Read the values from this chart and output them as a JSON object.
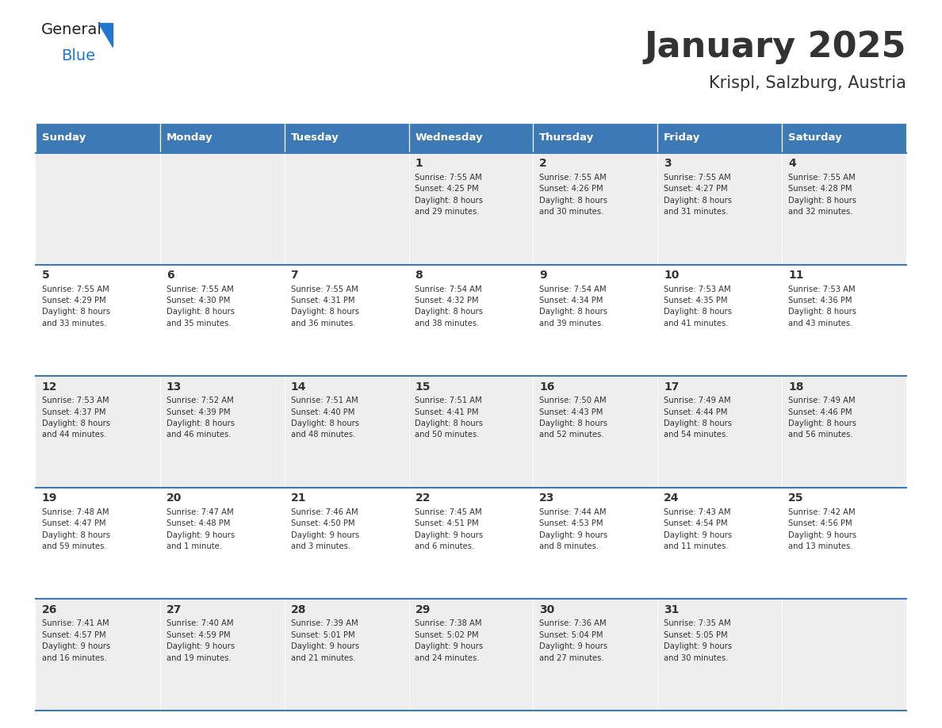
{
  "title": "January 2025",
  "subtitle": "Krispl, Salzburg, Austria",
  "header_bg": "#3d7ab5",
  "header_text": "#ffffff",
  "row_bg_odd": "#eeeeee",
  "row_bg_even": "#ffffff",
  "divider_color": "#3d7ab5",
  "text_color": "#333333",
  "days_of_week": [
    "Sunday",
    "Monday",
    "Tuesday",
    "Wednesday",
    "Thursday",
    "Friday",
    "Saturday"
  ],
  "calendar_data": [
    [
      {
        "day": "",
        "info": ""
      },
      {
        "day": "",
        "info": ""
      },
      {
        "day": "",
        "info": ""
      },
      {
        "day": "1",
        "info": "Sunrise: 7:55 AM\nSunset: 4:25 PM\nDaylight: 8 hours\nand 29 minutes."
      },
      {
        "day": "2",
        "info": "Sunrise: 7:55 AM\nSunset: 4:26 PM\nDaylight: 8 hours\nand 30 minutes."
      },
      {
        "day": "3",
        "info": "Sunrise: 7:55 AM\nSunset: 4:27 PM\nDaylight: 8 hours\nand 31 minutes."
      },
      {
        "day": "4",
        "info": "Sunrise: 7:55 AM\nSunset: 4:28 PM\nDaylight: 8 hours\nand 32 minutes."
      }
    ],
    [
      {
        "day": "5",
        "info": "Sunrise: 7:55 AM\nSunset: 4:29 PM\nDaylight: 8 hours\nand 33 minutes."
      },
      {
        "day": "6",
        "info": "Sunrise: 7:55 AM\nSunset: 4:30 PM\nDaylight: 8 hours\nand 35 minutes."
      },
      {
        "day": "7",
        "info": "Sunrise: 7:55 AM\nSunset: 4:31 PM\nDaylight: 8 hours\nand 36 minutes."
      },
      {
        "day": "8",
        "info": "Sunrise: 7:54 AM\nSunset: 4:32 PM\nDaylight: 8 hours\nand 38 minutes."
      },
      {
        "day": "9",
        "info": "Sunrise: 7:54 AM\nSunset: 4:34 PM\nDaylight: 8 hours\nand 39 minutes."
      },
      {
        "day": "10",
        "info": "Sunrise: 7:53 AM\nSunset: 4:35 PM\nDaylight: 8 hours\nand 41 minutes."
      },
      {
        "day": "11",
        "info": "Sunrise: 7:53 AM\nSunset: 4:36 PM\nDaylight: 8 hours\nand 43 minutes."
      }
    ],
    [
      {
        "day": "12",
        "info": "Sunrise: 7:53 AM\nSunset: 4:37 PM\nDaylight: 8 hours\nand 44 minutes."
      },
      {
        "day": "13",
        "info": "Sunrise: 7:52 AM\nSunset: 4:39 PM\nDaylight: 8 hours\nand 46 minutes."
      },
      {
        "day": "14",
        "info": "Sunrise: 7:51 AM\nSunset: 4:40 PM\nDaylight: 8 hours\nand 48 minutes."
      },
      {
        "day": "15",
        "info": "Sunrise: 7:51 AM\nSunset: 4:41 PM\nDaylight: 8 hours\nand 50 minutes."
      },
      {
        "day": "16",
        "info": "Sunrise: 7:50 AM\nSunset: 4:43 PM\nDaylight: 8 hours\nand 52 minutes."
      },
      {
        "day": "17",
        "info": "Sunrise: 7:49 AM\nSunset: 4:44 PM\nDaylight: 8 hours\nand 54 minutes."
      },
      {
        "day": "18",
        "info": "Sunrise: 7:49 AM\nSunset: 4:46 PM\nDaylight: 8 hours\nand 56 minutes."
      }
    ],
    [
      {
        "day": "19",
        "info": "Sunrise: 7:48 AM\nSunset: 4:47 PM\nDaylight: 8 hours\nand 59 minutes."
      },
      {
        "day": "20",
        "info": "Sunrise: 7:47 AM\nSunset: 4:48 PM\nDaylight: 9 hours\nand 1 minute."
      },
      {
        "day": "21",
        "info": "Sunrise: 7:46 AM\nSunset: 4:50 PM\nDaylight: 9 hours\nand 3 minutes."
      },
      {
        "day": "22",
        "info": "Sunrise: 7:45 AM\nSunset: 4:51 PM\nDaylight: 9 hours\nand 6 minutes."
      },
      {
        "day": "23",
        "info": "Sunrise: 7:44 AM\nSunset: 4:53 PM\nDaylight: 9 hours\nand 8 minutes."
      },
      {
        "day": "24",
        "info": "Sunrise: 7:43 AM\nSunset: 4:54 PM\nDaylight: 9 hours\nand 11 minutes."
      },
      {
        "day": "25",
        "info": "Sunrise: 7:42 AM\nSunset: 4:56 PM\nDaylight: 9 hours\nand 13 minutes."
      }
    ],
    [
      {
        "day": "26",
        "info": "Sunrise: 7:41 AM\nSunset: 4:57 PM\nDaylight: 9 hours\nand 16 minutes."
      },
      {
        "day": "27",
        "info": "Sunrise: 7:40 AM\nSunset: 4:59 PM\nDaylight: 9 hours\nand 19 minutes."
      },
      {
        "day": "28",
        "info": "Sunrise: 7:39 AM\nSunset: 5:01 PM\nDaylight: 9 hours\nand 21 minutes."
      },
      {
        "day": "29",
        "info": "Sunrise: 7:38 AM\nSunset: 5:02 PM\nDaylight: 9 hours\nand 24 minutes."
      },
      {
        "day": "30",
        "info": "Sunrise: 7:36 AM\nSunset: 5:04 PM\nDaylight: 9 hours\nand 27 minutes."
      },
      {
        "day": "31",
        "info": "Sunrise: 7:35 AM\nSunset: 5:05 PM\nDaylight: 9 hours\nand 30 minutes."
      },
      {
        "day": "",
        "info": ""
      }
    ]
  ],
  "logo_color_general": "#222222",
  "logo_color_blue": "#2277cc",
  "logo_triangle_color": "#2277cc",
  "fig_width": 11.88,
  "fig_height": 9.18,
  "dpi": 100
}
